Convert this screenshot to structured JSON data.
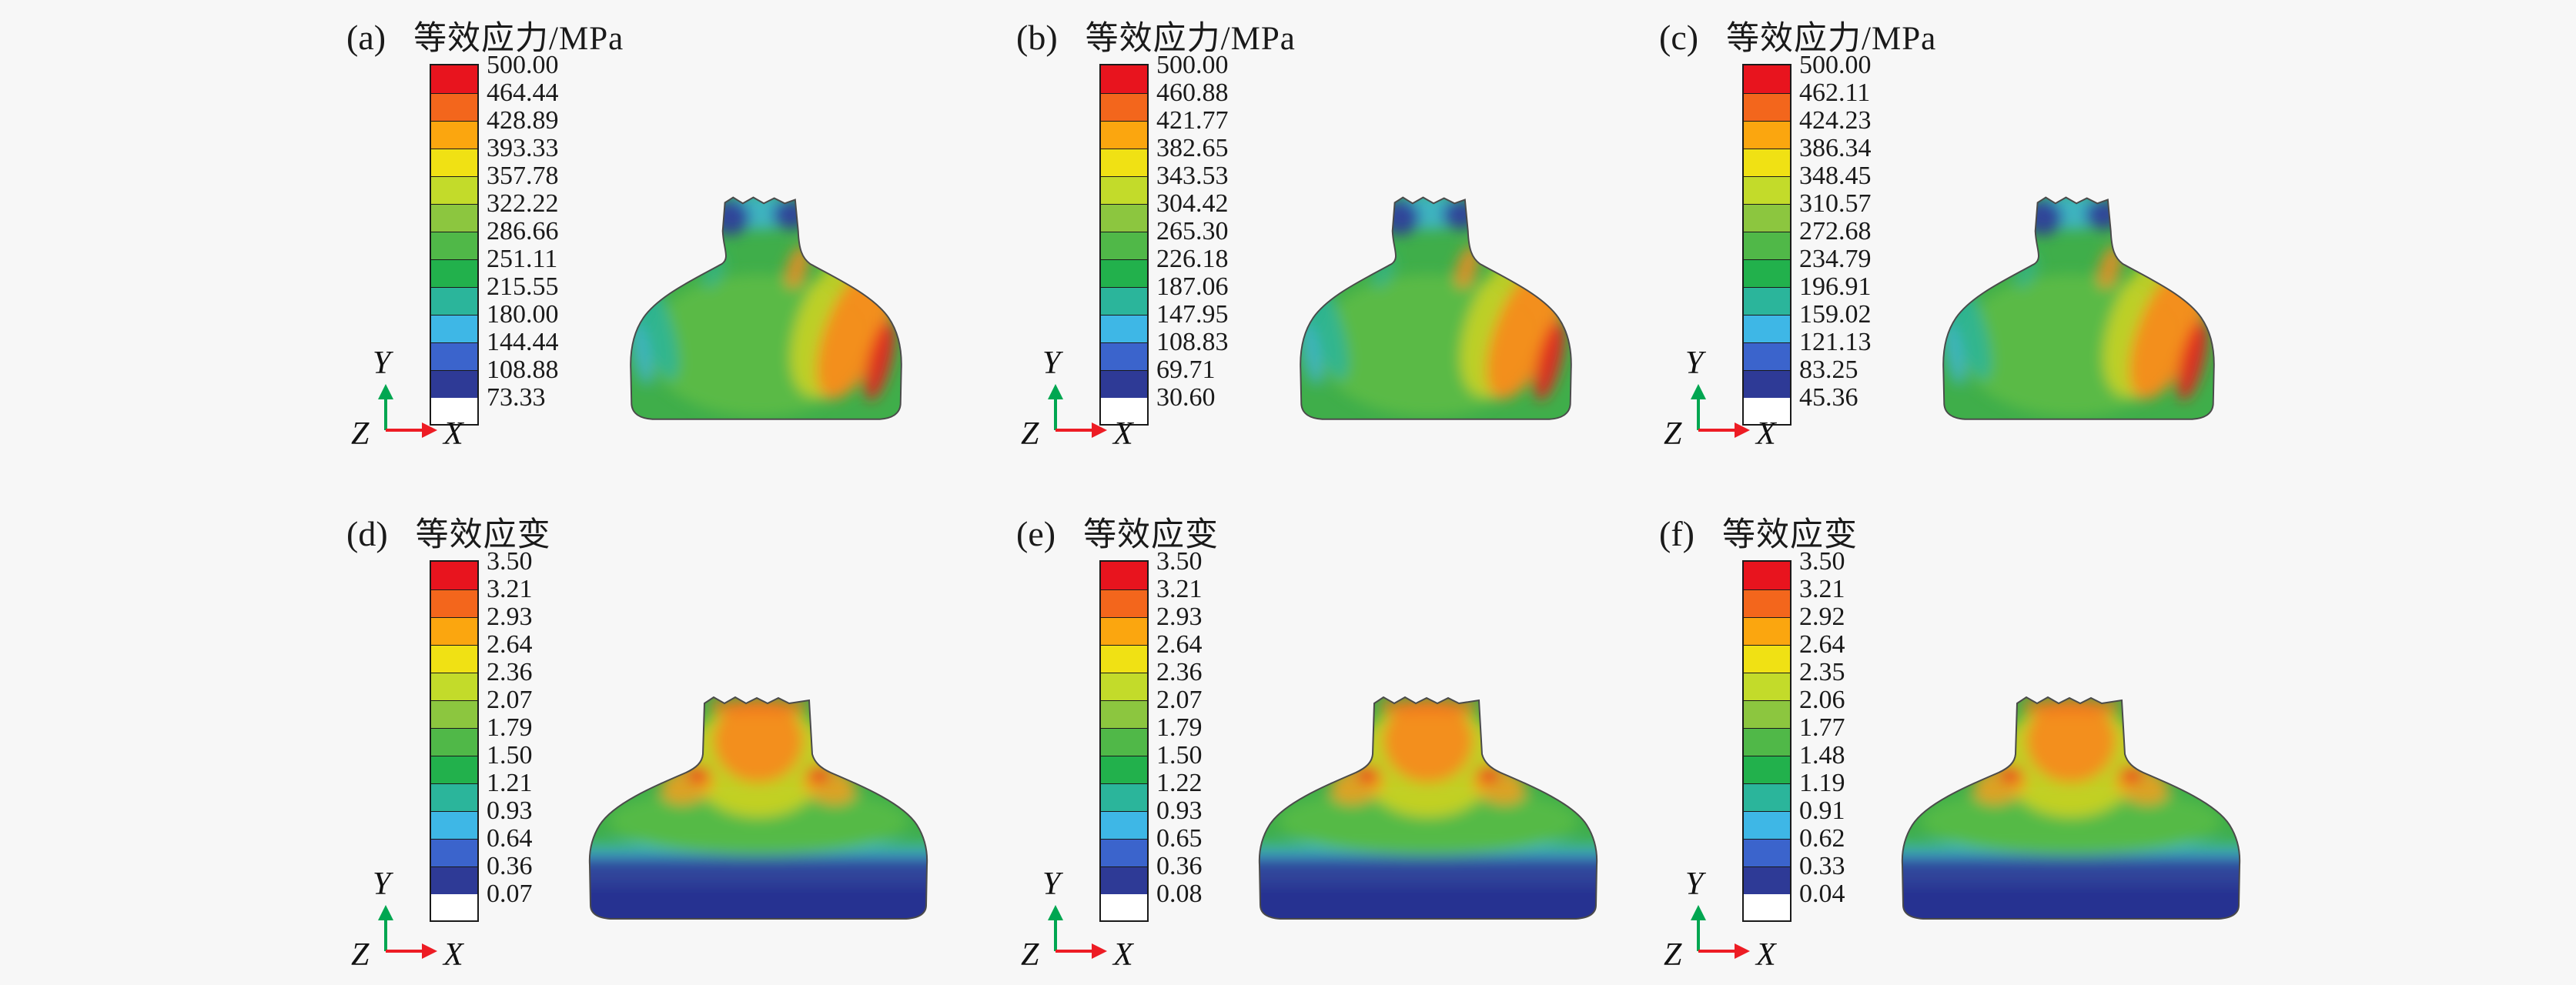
{
  "figure": {
    "background_color": "#f7f7f7",
    "legend_colors": [
      "#e8141e",
      "#f3661c",
      "#fba60f",
      "#f0e114",
      "#c3db2a",
      "#8cc63f",
      "#50b848",
      "#22b14c",
      "#2bb59b",
      "#3eb7e6",
      "#3b64cc",
      "#2e3a96"
    ],
    "axis_triad": {
      "up": "Y",
      "origin": "Z",
      "right": "X",
      "up_color": "#00a651",
      "right_color": "#ed1c24"
    },
    "panels": [
      {
        "label": "(a)",
        "title": "等效应力/MPa",
        "ticks": [
          "500.00",
          "464.44",
          "428.89",
          "393.33",
          "357.78",
          "322.22",
          "286.66",
          "251.11",
          "215.55",
          "180.00",
          "144.44",
          "108.88",
          "73.33"
        ]
      },
      {
        "label": "(b)",
        "title": "等效应力/MPa",
        "ticks": [
          "500.00",
          "460.88",
          "421.77",
          "382.65",
          "343.53",
          "304.42",
          "265.30",
          "226.18",
          "187.06",
          "147.95",
          "108.83",
          "69.71",
          "30.60"
        ]
      },
      {
        "label": "(c)",
        "title": "等效应力/MPa",
        "ticks": [
          "500.00",
          "462.11",
          "424.23",
          "386.34",
          "348.45",
          "310.57",
          "272.68",
          "234.79",
          "196.91",
          "159.02",
          "121.13",
          "83.25",
          "45.36"
        ]
      },
      {
        "label": "(d)",
        "title": "等效应变",
        "ticks": [
          "3.50",
          "3.21",
          "2.93",
          "2.64",
          "2.36",
          "2.07",
          "1.79",
          "1.50",
          "1.21",
          "0.93",
          "0.64",
          "0.36",
          "0.07"
        ]
      },
      {
        "label": "(e)",
        "title": "等效应变",
        "ticks": [
          "3.50",
          "3.21",
          "2.93",
          "2.64",
          "2.36",
          "2.07",
          "1.79",
          "1.50",
          "1.22",
          "0.93",
          "0.65",
          "0.36",
          "0.08"
        ]
      },
      {
        "label": "(f)",
        "title": "等效应变",
        "ticks": [
          "3.50",
          "3.21",
          "2.92",
          "2.64",
          "2.35",
          "2.06",
          "1.77",
          "1.48",
          "1.19",
          "0.91",
          "0.62",
          "0.33",
          "0.04"
        ]
      }
    ]
  },
  "chart_data": [
    {
      "type": "heatmap",
      "panel": "(a)",
      "title": "等效应力/MPa",
      "unit": "MPa",
      "legend_values": [
        500.0,
        464.44,
        428.89,
        393.33,
        357.78,
        322.22,
        286.66,
        251.11,
        215.55,
        180.0,
        144.44,
        108.88,
        73.33
      ],
      "value_range": [
        73.33,
        500.0
      ],
      "legend_order": "max-at-top",
      "colormap": "12-band rainbow red to dark blue"
    },
    {
      "type": "heatmap",
      "panel": "(b)",
      "title": "等效应力/MPa",
      "unit": "MPa",
      "legend_values": [
        500.0,
        460.88,
        421.77,
        382.65,
        343.53,
        304.42,
        265.3,
        226.18,
        187.06,
        147.95,
        108.83,
        69.71,
        30.6
      ],
      "value_range": [
        30.6,
        500.0
      ],
      "legend_order": "max-at-top",
      "colormap": "12-band rainbow red to dark blue"
    },
    {
      "type": "heatmap",
      "panel": "(c)",
      "title": "等效应力/MPa",
      "unit": "MPa",
      "legend_values": [
        500.0,
        462.11,
        424.23,
        386.34,
        348.45,
        310.57,
        272.68,
        234.79,
        196.91,
        159.02,
        121.13,
        83.25,
        45.36
      ],
      "value_range": [
        45.36,
        500.0
      ],
      "legend_order": "max-at-top",
      "colormap": "12-band rainbow red to dark blue"
    },
    {
      "type": "heatmap",
      "panel": "(d)",
      "title": "等效应变",
      "legend_values": [
        3.5,
        3.21,
        2.93,
        2.64,
        2.36,
        2.07,
        1.79,
        1.5,
        1.21,
        0.93,
        0.64,
        0.36,
        0.07
      ],
      "value_range": [
        0.07,
        3.5
      ],
      "legend_order": "max-at-top",
      "colormap": "12-band rainbow red to dark blue"
    },
    {
      "type": "heatmap",
      "panel": "(e)",
      "title": "等效应变",
      "legend_values": [
        3.5,
        3.21,
        2.93,
        2.64,
        2.36,
        2.07,
        1.79,
        1.5,
        1.22,
        0.93,
        0.65,
        0.36,
        0.08
      ],
      "value_range": [
        0.08,
        3.5
      ],
      "legend_order": "max-at-top",
      "colormap": "12-band rainbow red to dark blue"
    },
    {
      "type": "heatmap",
      "panel": "(f)",
      "title": "等效应变",
      "legend_values": [
        3.5,
        3.21,
        2.92,
        2.64,
        2.35,
        2.06,
        1.77,
        1.48,
        1.19,
        0.91,
        0.62,
        0.33,
        0.04
      ],
      "value_range": [
        0.04,
        3.5
      ],
      "legend_order": "max-at-top",
      "colormap": "12-band rainbow red to dark blue"
    }
  ]
}
